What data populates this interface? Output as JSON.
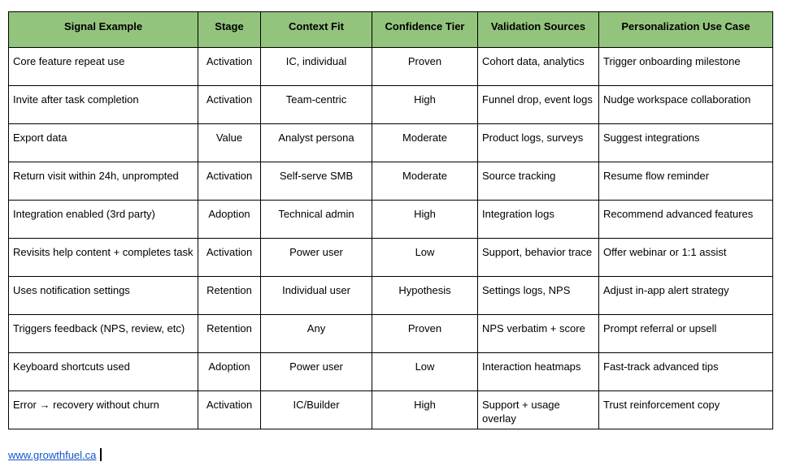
{
  "table": {
    "header_bg": "#93c47d",
    "border_color": "#000000",
    "columns": [
      "Signal Example",
      "Stage",
      "Context Fit",
      "Confidence Tier",
      "Validation Sources",
      "Personalization Use Case"
    ],
    "rows": [
      [
        "Core feature repeat use",
        "Activation",
        "IC, individual",
        "Proven",
        "Cohort data, analytics",
        "Trigger onboarding milestone"
      ],
      [
        "Invite after task completion",
        "Activation",
        "Team-centric",
        "High",
        "Funnel drop, event logs",
        "Nudge workspace collaboration"
      ],
      [
        "Export data",
        "Value",
        "Analyst persona",
        "Moderate",
        "Product logs, surveys",
        "Suggest integrations"
      ],
      [
        "Return visit within 24h, unprompted",
        "Activation",
        "Self-serve SMB",
        "Moderate",
        "Source tracking",
        "Resume flow reminder"
      ],
      [
        "Integration enabled (3rd party)",
        "Adoption",
        "Technical admin",
        "High",
        "Integration logs",
        "Recommend advanced features"
      ],
      [
        "Revisits help content + completes task",
        "Activation",
        "Power user",
        "Low",
        "Support, behavior trace",
        "Offer webinar or 1:1 assist"
      ],
      [
        "Uses notification settings",
        "Retention",
        "Individual user",
        "Hypothesis",
        "Settings logs, NPS",
        "Adjust in-app alert strategy"
      ],
      [
        "Triggers feedback (NPS, review, etc)",
        "Retention",
        "Any",
        "Proven",
        "NPS verbatim + score",
        "Prompt referral or upsell"
      ],
      [
        "Keyboard shortcuts used",
        "Adoption",
        "Power user",
        "Low",
        "Interaction heatmaps",
        "Fast-track advanced tips"
      ],
      [
        "Error → recovery without churn",
        "Activation",
        "IC/Builder",
        "High",
        "Support + usage overlay",
        "Trust reinforcement copy"
      ]
    ]
  },
  "footer": {
    "link_text": "www.growthfuel.ca",
    "link_color": "#1155cc"
  }
}
